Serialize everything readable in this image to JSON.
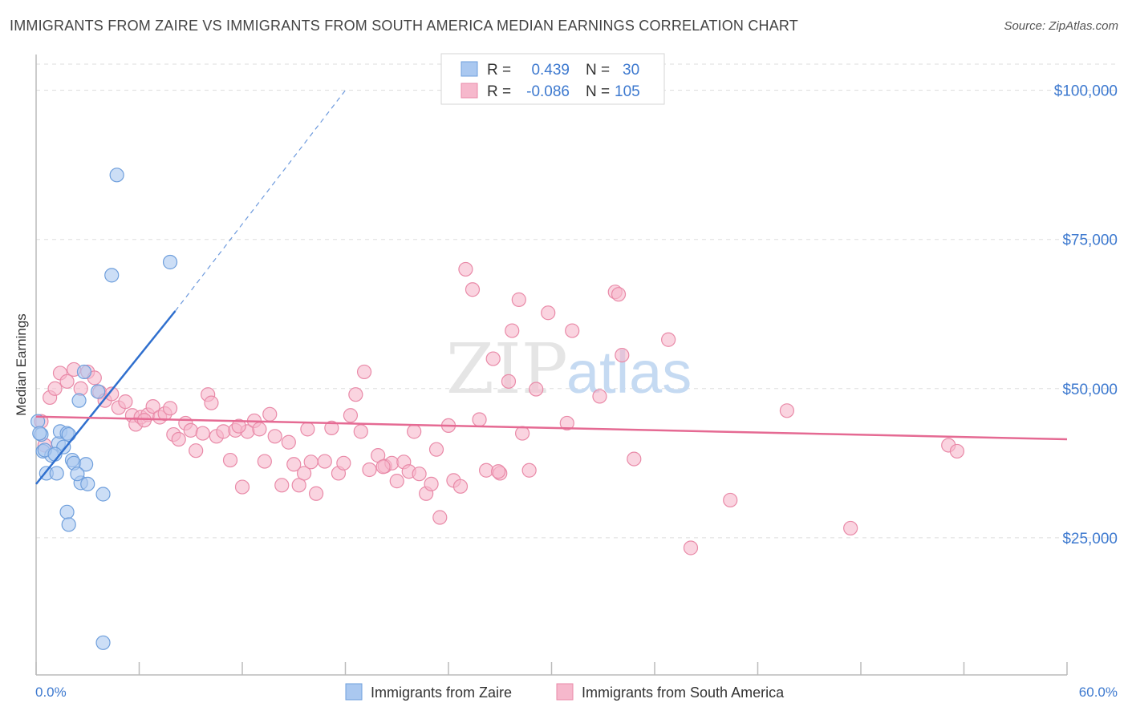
{
  "title": "IMMIGRANTS FROM ZAIRE VS IMMIGRANTS FROM SOUTH AMERICA MEDIAN EARNINGS CORRELATION CHART",
  "source": "Source: ZipAtlas.com",
  "watermark": {
    "part1": "ZIP",
    "part2": "atlas"
  },
  "colors": {
    "zaire_fill": "#aac8f0",
    "zaire_stroke": "#6f9fdc",
    "zaire_line": "#2f6fce",
    "sa_fill": "#f6b8cc",
    "sa_stroke": "#e98aa8",
    "sa_line": "#e56a93",
    "axis_label": "#3d79cf",
    "grid": "#dddddd"
  },
  "legend": {
    "rows": [
      {
        "r_label": "R =",
        "r_value": "0.439",
        "n_label": "N =",
        "n_value": "30"
      },
      {
        "r_label": "R =",
        "r_value": "-0.086",
        "n_label": "N =",
        "n_value": "105"
      }
    ]
  },
  "chart_data": {
    "type": "scatter",
    "title": "IMMIGRANTS FROM ZAIRE VS IMMIGRANTS FROM SOUTH AMERICA MEDIAN EARNINGS CORRELATION CHART",
    "xlabel": "",
    "ylabel": "Median Earnings",
    "xlim": [
      0,
      60
    ],
    "ylim": [
      2000,
      106000
    ],
    "x_tick_labels": [
      "0.0%",
      "60.0%"
    ],
    "y_ticks": [
      25000,
      50000,
      75000,
      100000
    ],
    "y_tick_labels": [
      "$25,000",
      "$50,000",
      "$75,000",
      "$100,000"
    ],
    "grid": "horizontal dashed",
    "legend_position": "top-center",
    "series": [
      {
        "name": "Immigrants from Zaire",
        "r": 0.439,
        "n": 30,
        "trend": {
          "x0": 0.0,
          "y0": 34000,
          "x1": 8.1,
          "y1": 63000,
          "dash_x1": 18.0,
          "dash_y1": 100000
        },
        "points": [
          [
            0.1,
            44500
          ],
          [
            0.3,
            42300
          ],
          [
            0.4,
            39500
          ],
          [
            0.6,
            35800
          ],
          [
            0.9,
            38800
          ],
          [
            1.2,
            35800
          ],
          [
            1.3,
            40800
          ],
          [
            1.4,
            42800
          ],
          [
            1.6,
            40200
          ],
          [
            1.8,
            42500
          ],
          [
            1.9,
            42300
          ],
          [
            2.1,
            38000
          ],
          [
            2.2,
            37500
          ],
          [
            2.5,
            48000
          ],
          [
            2.6,
            34200
          ],
          [
            2.8,
            52800
          ],
          [
            2.9,
            37300
          ],
          [
            3.0,
            34000
          ],
          [
            1.8,
            29300
          ],
          [
            1.9,
            27200
          ],
          [
            3.6,
            49500
          ],
          [
            3.9,
            32300
          ],
          [
            4.4,
            69000
          ],
          [
            4.7,
            85800
          ],
          [
            7.8,
            71200
          ],
          [
            3.9,
            7400
          ],
          [
            0.2,
            42500
          ],
          [
            0.5,
            39700
          ],
          [
            2.4,
            35700
          ],
          [
            1.1,
            39000
          ]
        ]
      },
      {
        "name": "Immigrants from South America",
        "r": -0.086,
        "n": 105,
        "trend": {
          "x0": 0.0,
          "y0": 45300,
          "x1": 60.0,
          "y1": 41500
        },
        "points": [
          [
            0.3,
            44500
          ],
          [
            0.5,
            40500
          ],
          [
            0.8,
            48500
          ],
          [
            1.1,
            50000
          ],
          [
            1.4,
            52600
          ],
          [
            1.8,
            51200
          ],
          [
            2.2,
            53200
          ],
          [
            2.6,
            50000
          ],
          [
            3.0,
            52800
          ],
          [
            3.4,
            51800
          ],
          [
            3.7,
            49400
          ],
          [
            4.0,
            48000
          ],
          [
            4.4,
            49100
          ],
          [
            4.8,
            46800
          ],
          [
            5.2,
            47800
          ],
          [
            5.6,
            45500
          ],
          [
            5.8,
            44000
          ],
          [
            6.1,
            45200
          ],
          [
            6.5,
            45600
          ],
          [
            6.8,
            47000
          ],
          [
            7.2,
            45200
          ],
          [
            7.5,
            45800
          ],
          [
            7.8,
            46700
          ],
          [
            8.0,
            42300
          ],
          [
            8.3,
            41500
          ],
          [
            8.7,
            44200
          ],
          [
            9.0,
            43000
          ],
          [
            9.3,
            39600
          ],
          [
            9.7,
            42500
          ],
          [
            10.0,
            49000
          ],
          [
            10.2,
            47600
          ],
          [
            10.5,
            42000
          ],
          [
            10.9,
            42800
          ],
          [
            11.3,
            38000
          ],
          [
            11.6,
            43000
          ],
          [
            12.0,
            33500
          ],
          [
            12.3,
            42800
          ],
          [
            12.7,
            44600
          ],
          [
            13.0,
            43200
          ],
          [
            13.3,
            37800
          ],
          [
            13.6,
            45700
          ],
          [
            13.9,
            42000
          ],
          [
            14.3,
            33800
          ],
          [
            14.7,
            41000
          ],
          [
            15.0,
            37300
          ],
          [
            15.3,
            33800
          ],
          [
            15.6,
            35800
          ],
          [
            16.0,
            37700
          ],
          [
            16.3,
            32400
          ],
          [
            16.8,
            37800
          ],
          [
            17.2,
            43400
          ],
          [
            17.6,
            35800
          ],
          [
            17.9,
            37500
          ],
          [
            18.3,
            45500
          ],
          [
            18.6,
            49000
          ],
          [
            18.9,
            42800
          ],
          [
            19.1,
            52800
          ],
          [
            19.4,
            36400
          ],
          [
            19.9,
            38800
          ],
          [
            20.3,
            37000
          ],
          [
            20.7,
            37500
          ],
          [
            21.0,
            34500
          ],
          [
            21.4,
            37700
          ],
          [
            21.7,
            36100
          ],
          [
            22.0,
            42800
          ],
          [
            22.3,
            35700
          ],
          [
            22.7,
            32400
          ],
          [
            23.0,
            34000
          ],
          [
            23.3,
            39800
          ],
          [
            23.5,
            28400
          ],
          [
            24.0,
            43800
          ],
          [
            24.3,
            34600
          ],
          [
            24.7,
            33600
          ],
          [
            25.0,
            70000
          ],
          [
            25.4,
            66600
          ],
          [
            25.8,
            44800
          ],
          [
            26.2,
            36300
          ],
          [
            26.6,
            55000
          ],
          [
            27.0,
            35800
          ],
          [
            27.5,
            51200
          ],
          [
            27.7,
            59700
          ],
          [
            28.1,
            64900
          ],
          [
            28.3,
            42500
          ],
          [
            28.7,
            36300
          ],
          [
            29.1,
            49900
          ],
          [
            29.8,
            62700
          ],
          [
            30.9,
            44200
          ],
          [
            31.2,
            59700
          ],
          [
            32.8,
            48700
          ],
          [
            33.7,
            66200
          ],
          [
            33.9,
            65800
          ],
          [
            34.1,
            55600
          ],
          [
            34.8,
            38200
          ],
          [
            36.8,
            58200
          ],
          [
            38.1,
            23300
          ],
          [
            40.4,
            31300
          ],
          [
            43.7,
            46300
          ],
          [
            47.4,
            26600
          ],
          [
            53.1,
            40500
          ],
          [
            53.6,
            39500
          ],
          [
            6.3,
            44700
          ],
          [
            15.8,
            43200
          ],
          [
            20.2,
            36900
          ],
          [
            11.8,
            43700
          ],
          [
            26.9,
            36100
          ]
        ]
      }
    ]
  }
}
